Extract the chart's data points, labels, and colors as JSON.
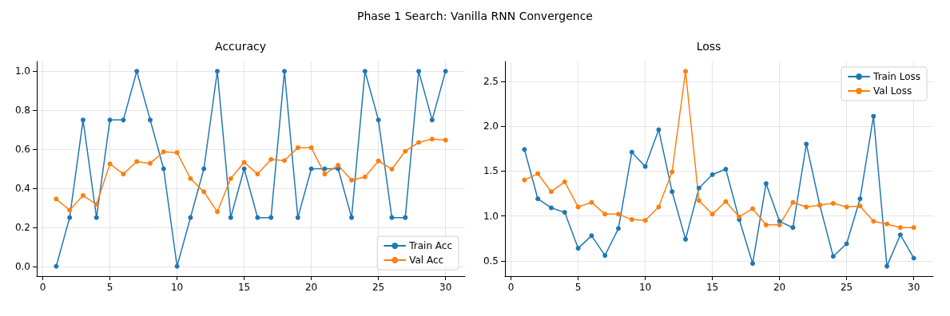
{
  "chart_data": [
    {
      "type": "line",
      "title": "Accuracy",
      "annotations": [
        "Phase 1 Search: Vanilla RNN Convergence"
      ],
      "x": [
        1,
        2,
        3,
        4,
        5,
        6,
        7,
        8,
        9,
        10,
        11,
        12,
        13,
        14,
        15,
        16,
        17,
        18,
        19,
        20,
        21,
        22,
        23,
        24,
        25,
        26,
        27,
        28,
        29,
        30
      ],
      "series": [
        {
          "name": "Train Acc",
          "color": "#1f77b4",
          "values": [
            0,
            0.25,
            0.75,
            0.25,
            0.75,
            0.75,
            1,
            0.75,
            0.5,
            0,
            0.25,
            0.5,
            1,
            0.25,
            0.5,
            0.25,
            0.25,
            1,
            0.25,
            0.5,
            0.5,
            0.5,
            0.25,
            1,
            0.75,
            0.25,
            0.25,
            1,
            0.75,
            1
          ]
        },
        {
          "name": "Val Acc",
          "color": "#ff7f0e",
          "values": [
            0.345,
            0.288,
            0.363,
            0.318,
            0.525,
            0.473,
            0.537,
            0.528,
            0.587,
            0.583,
            0.45,
            0.382,
            0.28,
            0.45,
            0.533,
            0.473,
            0.548,
            0.542,
            0.608,
            0.608,
            0.473,
            0.518,
            0.442,
            0.458,
            0.54,
            0.498,
            0.59,
            0.635,
            0.652,
            0.647
          ]
        }
      ],
      "xlim": [
        -0.45,
        31.45
      ],
      "xticks": [
        0,
        5,
        10,
        15,
        20,
        25,
        30
      ],
      "ylim": [
        -0.05,
        1.05
      ],
      "yticks": [
        {
          "value": 0,
          "label": "0.0"
        },
        0.2,
        0.4,
        0.6,
        0.8,
        {
          "value": 1,
          "label": "1.0"
        }
      ],
      "grid": true,
      "legend": "bottom right",
      "marker": "circle",
      "line_style": "solid"
    },
    {
      "type": "line",
      "title": "Loss",
      "x": [
        1,
        2,
        3,
        4,
        5,
        6,
        7,
        8,
        9,
        10,
        11,
        12,
        13,
        14,
        15,
        16,
        17,
        18,
        19,
        20,
        21,
        22,
        23,
        24,
        25,
        26,
        27,
        28,
        29,
        30
      ],
      "series": [
        {
          "name": "Train Loss",
          "color": "#1f77b4",
          "values": [
            1.74,
            1.19,
            1.09,
            1.04,
            0.64,
            0.78,
            0.56,
            0.86,
            1.71,
            1.55,
            1.96,
            1.27,
            0.74,
            1.31,
            1.46,
            1.52,
            0.96,
            0.47,
            1.36,
            0.94,
            0.87,
            1.8,
            1.12,
            0.55,
            0.69,
            1.19,
            2.11,
            0.44,
            0.79,
            0.53
          ]
        },
        {
          "name": "Val Loss",
          "color": "#ff7f0e",
          "values": [
            1.4,
            1.47,
            1.27,
            1.38,
            1.1,
            1.15,
            1.02,
            1.02,
            0.96,
            0.95,
            1.1,
            1.49,
            2.61,
            1.17,
            1.02,
            1.16,
            0.99,
            1.08,
            0.9,
            0.9,
            1.15,
            1.1,
            1.12,
            1.14,
            1.1,
            1.11,
            0.94,
            0.91,
            0.87,
            0.87
          ]
        }
      ],
      "xlim": [
        -0.45,
        31.45
      ],
      "xticks": [
        0,
        5,
        10,
        15,
        20,
        25,
        30
      ],
      "ylim": [
        0.33,
        2.72
      ],
      "yticks": [
        0.5,
        {
          "value": 1,
          "label": "1.0"
        },
        1.5,
        {
          "value": 2,
          "label": "2.0"
        },
        2.5
      ],
      "grid": true,
      "legend": "top right",
      "marker": "circle",
      "line_style": "solid"
    }
  ]
}
